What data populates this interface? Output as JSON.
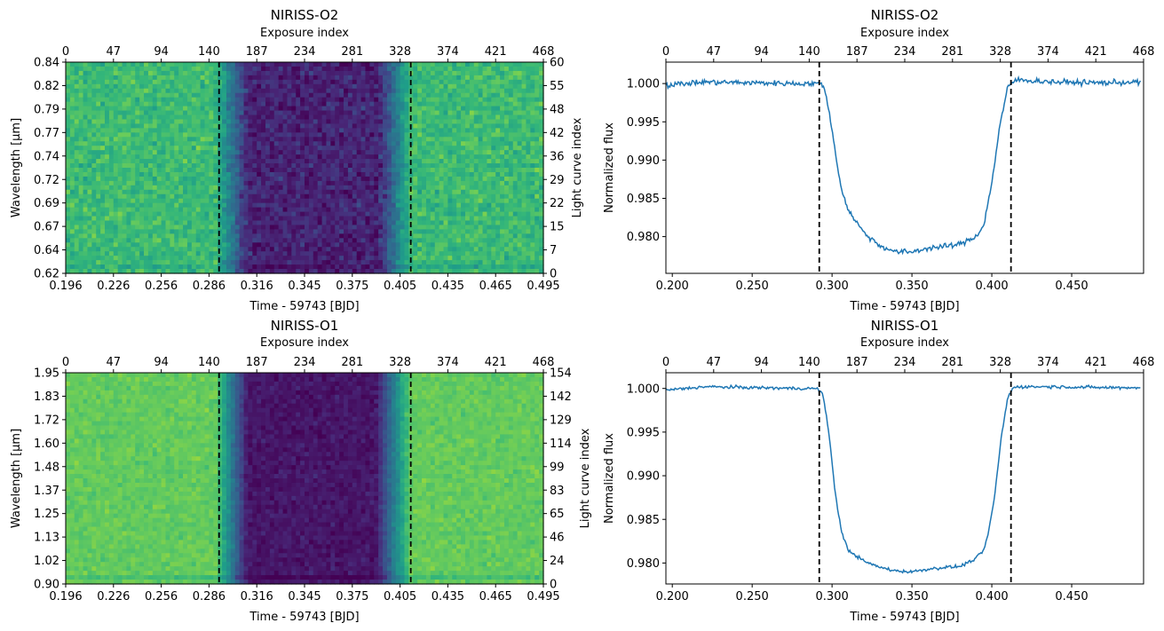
{
  "chart_data": [
    {
      "id": "ts-o2",
      "type": "heatmap",
      "title": "NIRISS-O2",
      "xlabel": "Time - 59743 [BJD]",
      "ylabel": "Wavelength [$\\mu$m]",
      "ylabel_text": "Wavelength [μm]",
      "top_xlabel": "Exposure index",
      "right_ylabel": "Light curve index",
      "x_ticklabels": [
        "0.196",
        "0.226",
        "0.256",
        "0.286",
        "0.316",
        "0.345",
        "0.375",
        "0.405",
        "0.435",
        "0.465",
        "0.495"
      ],
      "y_ticklabels": [
        "0.62",
        "0.64",
        "0.67",
        "0.69",
        "0.72",
        "0.74",
        "0.77",
        "0.79",
        "0.82",
        "0.84"
      ],
      "top_ticklabels": [
        "0",
        "47",
        "94",
        "140",
        "187",
        "234",
        "281",
        "328",
        "374",
        "421",
        "468"
      ],
      "right_ticklabels": [
        "0",
        "7",
        "15",
        "22",
        "29",
        "36",
        "42",
        "48",
        "55",
        "60"
      ],
      "xlim": [
        0.196,
        0.495
      ],
      "ylim": [
        0.62,
        0.84
      ],
      "colormap": "viridis",
      "in_transit_level": 0.1,
      "out_transit_level": 0.68,
      "noise": 0.22,
      "ingress": [
        0.29,
        0.31
      ],
      "egress": [
        0.392,
        0.412
      ],
      "vlines": [
        0.292,
        0.412
      ],
      "exposures": 468,
      "light_curves": 60
    },
    {
      "id": "lc-o2",
      "type": "line",
      "title": "NIRISS-O2",
      "xlabel": "Time - 59743 [BJD]",
      "ylabel": "Normalized flux",
      "top_xlabel": "Exposure index",
      "x_ticklabels": [
        "0.200",
        "0.250",
        "0.300",
        "0.350",
        "0.400",
        "0.450"
      ],
      "y_ticklabels": [
        "0.980",
        "0.985",
        "0.990",
        "0.995",
        "1.000"
      ],
      "top_ticklabels": [
        "0",
        "47",
        "94",
        "140",
        "187",
        "234",
        "281",
        "328",
        "374",
        "421",
        "468"
      ],
      "xlim": [
        0.196,
        0.495
      ],
      "ylim": [
        0.9752,
        1.0028
      ],
      "color": "#1f77b4",
      "series": [
        {
          "x": [
            0.196,
            0.22,
            0.25,
            0.28,
            0.29,
            0.295,
            0.3,
            0.305,
            0.31,
            0.32,
            0.33,
            0.34,
            0.35,
            0.36,
            0.37,
            0.38,
            0.39,
            0.395,
            0.4,
            0.405,
            0.41,
            0.415,
            0.44,
            0.47,
            0.493
          ],
          "values": [
            0.9998,
            1.0002,
            1.0001,
            1.0,
            1.0,
            0.9998,
            0.994,
            0.987,
            0.9835,
            0.9805,
            0.9788,
            0.978,
            0.978,
            0.9785,
            0.9787,
            0.979,
            0.98,
            0.9815,
            0.987,
            0.9945,
            0.9995,
            1.0005,
            1.0002,
            1.0001,
            1.0002
          ]
        }
      ],
      "vlines": [
        0.292,
        0.412
      ]
    },
    {
      "id": "ts-o1",
      "type": "heatmap",
      "title": "NIRISS-O1",
      "xlabel": "Time - 59743 [BJD]",
      "ylabel": "Wavelength [$\\mu$m]",
      "ylabel_text": "Wavelength [μm]",
      "top_xlabel": "Exposure index",
      "right_ylabel": "Light curve index",
      "x_ticklabels": [
        "0.196",
        "0.226",
        "0.256",
        "0.286",
        "0.316",
        "0.345",
        "0.375",
        "0.405",
        "0.435",
        "0.465",
        "0.495"
      ],
      "y_ticklabels": [
        "0.90",
        "1.02",
        "1.13",
        "1.25",
        "1.37",
        "1.48",
        "1.60",
        "1.72",
        "1.83",
        "1.95"
      ],
      "top_ticklabels": [
        "0",
        "47",
        "94",
        "140",
        "187",
        "234",
        "281",
        "328",
        "374",
        "421",
        "468"
      ],
      "right_ticklabels": [
        "0",
        "24",
        "46",
        "65",
        "83",
        "99",
        "114",
        "129",
        "142",
        "154"
      ],
      "xlim": [
        0.196,
        0.495
      ],
      "ylim": [
        0.9,
        1.95
      ],
      "colormap": "viridis",
      "in_transit_level": 0.06,
      "out_transit_level": 0.76,
      "noise": 0.12,
      "ingress": [
        0.29,
        0.31
      ],
      "egress": [
        0.39,
        0.412
      ],
      "vlines": [
        0.292,
        0.412
      ],
      "exposures": 468,
      "light_curves": 154
    },
    {
      "id": "lc-o1",
      "type": "line",
      "title": "NIRISS-O1",
      "xlabel": "Time - 59743 [BJD]",
      "ylabel": "Normalized flux",
      "top_xlabel": "Exposure index",
      "x_ticklabels": [
        "0.200",
        "0.250",
        "0.300",
        "0.350",
        "0.400",
        "0.450"
      ],
      "y_ticklabels": [
        "0.980",
        "0.985",
        "0.990",
        "0.995",
        "1.000"
      ],
      "top_ticklabels": [
        "0",
        "47",
        "94",
        "140",
        "187",
        "234",
        "281",
        "328",
        "374",
        "421",
        "468"
      ],
      "xlim": [
        0.196,
        0.495
      ],
      "ylim": [
        0.9776,
        1.0018
      ],
      "color": "#1f77b4",
      "series": [
        {
          "x": [
            0.196,
            0.22,
            0.25,
            0.28,
            0.29,
            0.294,
            0.298,
            0.302,
            0.306,
            0.31,
            0.32,
            0.33,
            0.34,
            0.35,
            0.36,
            0.37,
            0.38,
            0.39,
            0.395,
            0.398,
            0.402,
            0.406,
            0.41,
            0.414,
            0.44,
            0.47,
            0.493
          ],
          "values": [
            0.9998,
            1.0002,
            1.0001,
            1.0,
            1.0,
            0.9995,
            0.995,
            0.988,
            0.9835,
            0.9815,
            0.9802,
            0.9795,
            0.9791,
            0.979,
            0.9793,
            0.9795,
            0.9796,
            0.9805,
            0.9815,
            0.9835,
            0.988,
            0.9945,
            0.999,
            1.0002,
            1.0002,
            1.0001,
            1.0001
          ]
        }
      ],
      "vlines": [
        0.292,
        0.412
      ]
    }
  ]
}
